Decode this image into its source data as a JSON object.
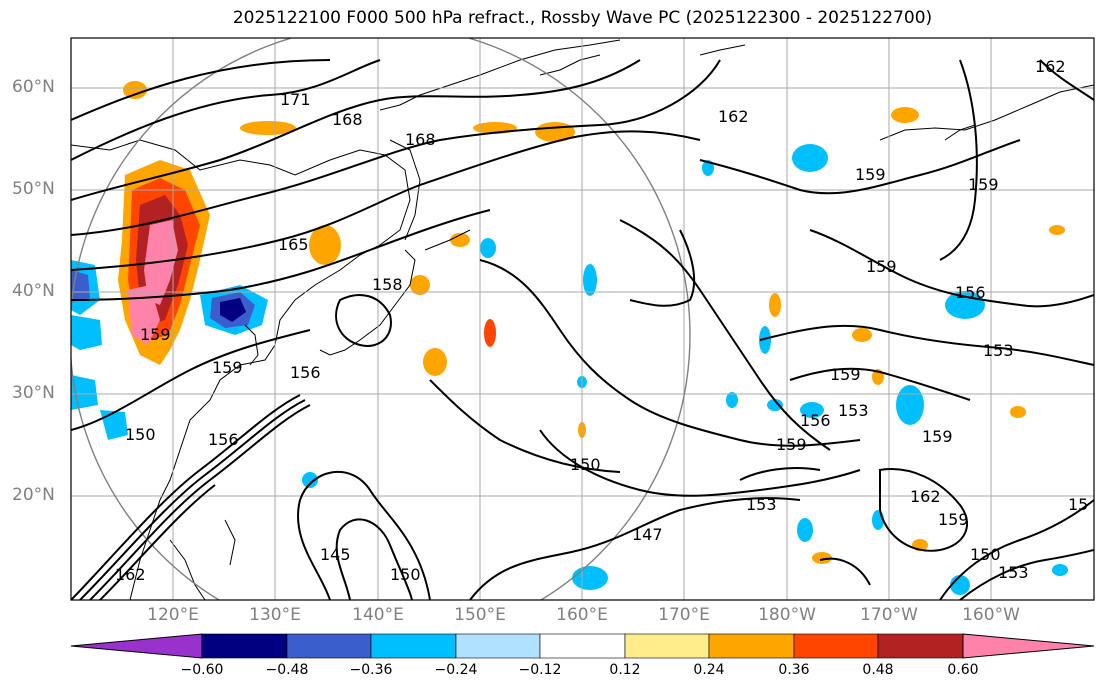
{
  "title": "2025122100 F000 500 hPa refract., Rossby Wave PC (2025122300 - 2025122700)",
  "map": {
    "lon_range": [
      111,
      211
    ],
    "lat_range": [
      10,
      65
    ],
    "lat_labels": [
      "60°N",
      "50°N",
      "40°N",
      "30°N",
      "20°N"
    ],
    "lon_labels": [
      "120°E",
      "130°E",
      "140°E",
      "150°E",
      "160°E",
      "170°E",
      "180°W",
      "170°W",
      "160°W"
    ],
    "contour_labels": [
      "171",
      "168",
      "168",
      "162",
      "162",
      "165",
      "159",
      "159",
      "159",
      "156",
      "153",
      "159",
      "153",
      "156",
      "159",
      "159",
      "159",
      "150",
      "147",
      "153",
      "162",
      "159",
      "150",
      "153",
      "15",
      "159",
      "150",
      "162",
      "156",
      "156",
      "145",
      "150",
      "158"
    ]
  },
  "colorbar": {
    "ticks": [
      "−0.60",
      "−0.48",
      "−0.36",
      "−0.24",
      "−0.12",
      "0.12",
      "0.24",
      "0.36",
      "0.48",
      "0.60"
    ],
    "colors": [
      "#9932cc",
      "#000080",
      "#3a5fcd",
      "#00bfff",
      "#b0e2ff",
      "#ffffff",
      "#ffec8b",
      "#ffa500",
      "#ff4500",
      "#b22222",
      "#ff82ab"
    ]
  }
}
